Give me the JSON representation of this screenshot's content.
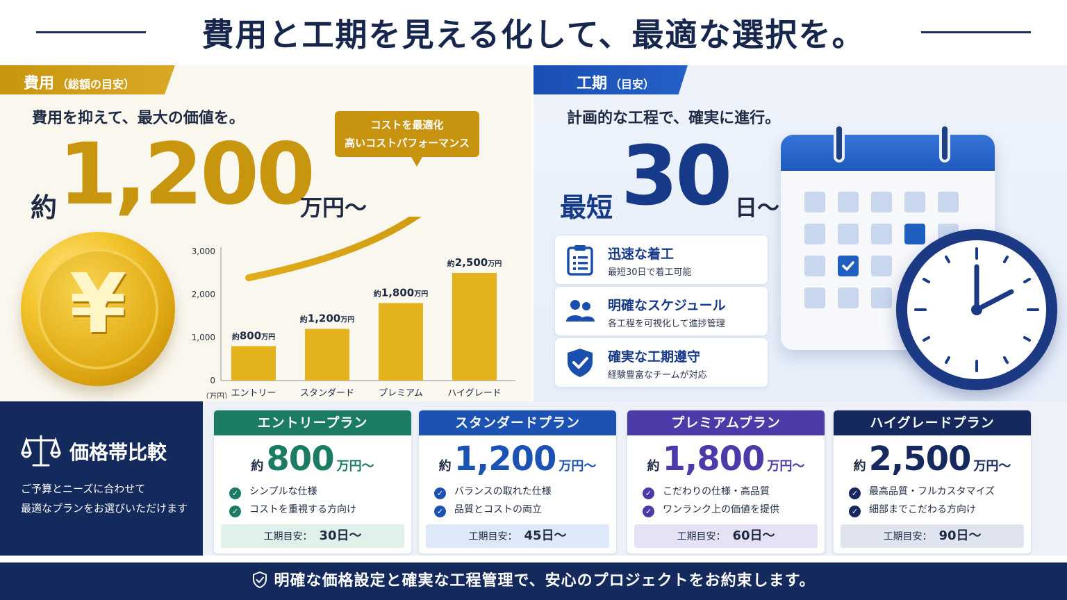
{
  "header": {
    "title": "費用と工期を見える化して、最適な選択を。"
  },
  "cost": {
    "tab_label": "費用",
    "tab_sub": "（総額の目安）",
    "subhead": "費用を抑えて、最大の価値を。",
    "approx": "約",
    "value": "1,200",
    "unit": "万円～",
    "callout_line1": "コストを最適化",
    "callout_line2": "高いコストパフォーマンス",
    "coin_symbol": "¥"
  },
  "chart_data": {
    "type": "bar",
    "categories": [
      "エントリー",
      "スタンダード",
      "プレミアム",
      "ハイグレード"
    ],
    "values": [
      800,
      1200,
      1800,
      2500
    ],
    "data_labels": [
      "800",
      "1,200",
      "1,800",
      "2,500"
    ],
    "label_prefix": "約",
    "label_suffix": "万円",
    "yticks": [
      "0",
      "1,000",
      "2,000",
      "3,000"
    ],
    "ylim": [
      0,
      3000
    ],
    "yunit_label": "（万円）",
    "bar_color": "#e3b21d"
  },
  "schedule": {
    "tab_label": "工期",
    "tab_sub": "（目安）",
    "subhead": "計画的な工程で、確実に進行。",
    "prefix": "最短",
    "value": "30",
    "unit": "日～",
    "features": [
      {
        "title": "迅速な着工",
        "desc": "最短30日で着工可能",
        "icon": "clipboard-icon"
      },
      {
        "title": "明確なスケジュール",
        "desc": "各工程を可視化して進捗管理",
        "icon": "team-icon"
      },
      {
        "title": "確実な工期遵守",
        "desc": "経験豊富なチームが対応",
        "icon": "shield-check-icon"
      }
    ]
  },
  "compare": {
    "title": "価格帯比較",
    "desc_line1": "ご予算とニーズに合わせて",
    "desc_line2": "最適なプランをお選びいただけます"
  },
  "plans": [
    {
      "name": "エントリープラン",
      "approx": "約",
      "price": "800",
      "unit": "万円～",
      "features": [
        "シンプルな仕様",
        "コストを重視する方向け"
      ],
      "term_label": "工期目安：",
      "term_value": "30日～",
      "color": "#1b7b64",
      "term_bg": "#dff1ea"
    },
    {
      "name": "スタンダードプラン",
      "approx": "約",
      "price": "1,200",
      "unit": "万円～",
      "features": [
        "バランスの取れた仕様",
        "品質とコストの両立"
      ],
      "term_label": "工期目安：",
      "term_value": "45日～",
      "color": "#1b52b3",
      "term_bg": "#dde8f8"
    },
    {
      "name": "プレミアムプラン",
      "approx": "約",
      "price": "1,800",
      "unit": "万円～",
      "features": [
        "こだわりの仕様・高品質",
        "ワンランク上の価値を提供"
      ],
      "term_label": "工期目安：",
      "term_value": "60日～",
      "color": "#4a3ba8",
      "term_bg": "#e5e2f6"
    },
    {
      "name": "ハイグレードプラン",
      "approx": "約",
      "price": "2,500",
      "unit": "万円～",
      "features": [
        "最高品質・フルカスタマイズ",
        "細部までこだわる方向け"
      ],
      "term_label": "工期目安：",
      "term_value": "90日～",
      "color": "#16295e",
      "term_bg": "#dfe4ef"
    }
  ],
  "footer": {
    "text": "明確な価格設定と確実な工程管理で、安心のプロジェクトをお約束します。"
  }
}
